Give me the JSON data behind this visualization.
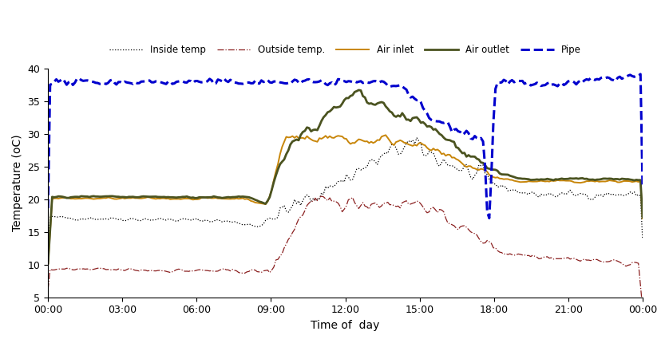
{
  "title": "",
  "xlabel": "Time of  day",
  "ylabel": "Temperature (oC)",
  "ylim": [
    5,
    40
  ],
  "yticks": [
    5,
    10,
    15,
    20,
    25,
    30,
    35,
    40
  ],
  "xtick_labels": [
    "00:00",
    "03:00",
    "06:00",
    "09:00",
    "12:00",
    "15:00",
    "18:00",
    "21:00",
    "00:00"
  ],
  "legend_labels": [
    "Inside temp",
    "Outside temp.",
    "Air inlet",
    "Air outlet",
    "Pipe"
  ],
  "inside_color": "#000000",
  "outside_color": "#8B2020",
  "air_inlet_color": "#C8860A",
  "air_outlet_color": "#4B5320",
  "pipe_color": "#0000CD",
  "inside_lw": 0.9,
  "outside_lw": 0.9,
  "air_inlet_lw": 1.4,
  "air_outlet_lw": 2.0,
  "pipe_lw": 2.2,
  "figsize": [
    8.38,
    4.3
  ],
  "dpi": 100
}
